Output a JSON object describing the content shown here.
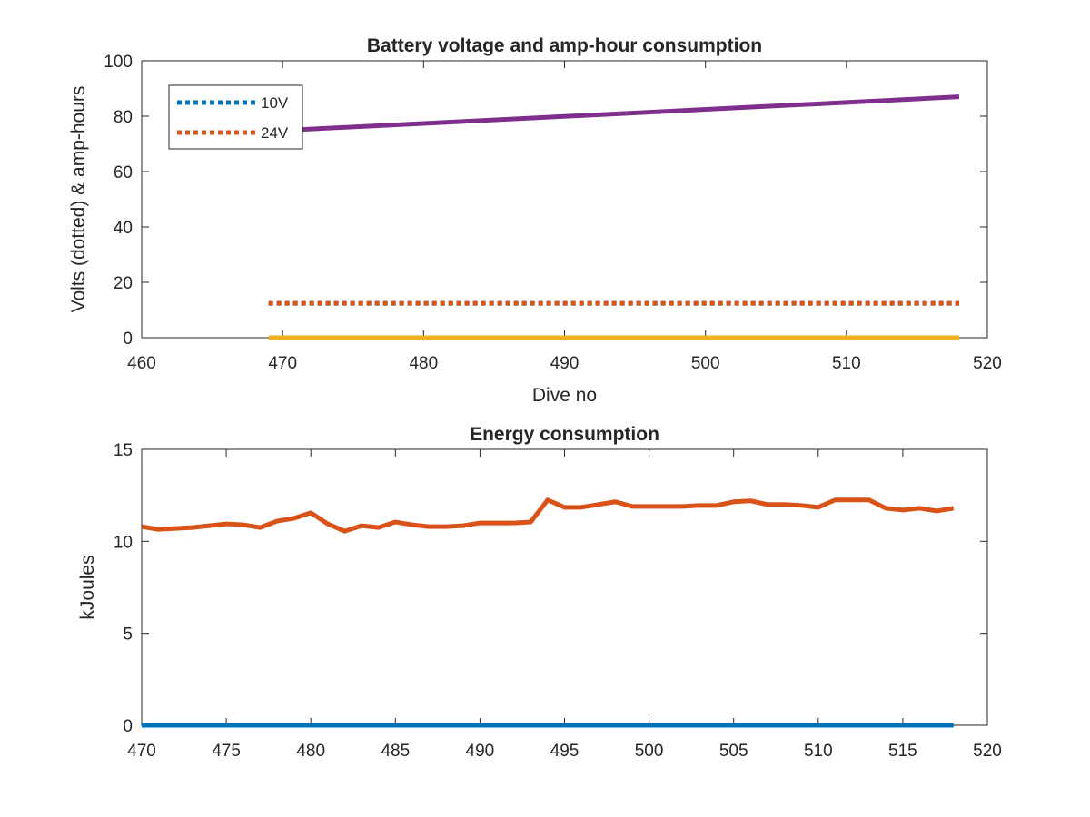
{
  "chart_data": [
    {
      "type": "line",
      "title": "Battery voltage and amp-hour consumption",
      "xlabel": "Dive no",
      "ylabel": "Volts (dotted) & amp-hours",
      "xlim": [
        460,
        520
      ],
      "ylim": [
        0,
        100
      ],
      "xticks": [
        460,
        470,
        480,
        490,
        500,
        510,
        520
      ],
      "yticks": [
        0,
        20,
        40,
        60,
        80,
        100
      ],
      "legend": {
        "position": "top-left",
        "entries": [
          "10V",
          "24V"
        ]
      },
      "series": [
        {
          "name": "10V",
          "color": "#0072BD",
          "style": "dotted",
          "x": [
            469,
            518
          ],
          "y": [
            12.4,
            12.4
          ]
        },
        {
          "name": "24V",
          "color": "#D95319",
          "style": "dotted",
          "x": [
            469,
            518
          ],
          "y": [
            12.4,
            12.4
          ]
        },
        {
          "color": "#7E2F8E",
          "style": "solid",
          "x": [
            469,
            518
          ],
          "y": [
            74.6,
            87
          ]
        },
        {
          "color": "#EDB120",
          "style": "solid",
          "x": [
            469,
            518
          ],
          "y": [
            0,
            0
          ]
        }
      ]
    },
    {
      "type": "line",
      "title": "Energy consumption",
      "xlabel": "",
      "ylabel": "kJoules",
      "xlim": [
        470,
        520
      ],
      "ylim": [
        0,
        15
      ],
      "xticks": [
        470,
        475,
        480,
        485,
        490,
        495,
        500,
        505,
        510,
        515,
        520
      ],
      "yticks": [
        0,
        5,
        10,
        15
      ],
      "series": [
        {
          "color": "#0072BD",
          "style": "solid",
          "x": [
            470,
            518
          ],
          "y": [
            0,
            0
          ]
        },
        {
          "color": "#D95319",
          "style": "solid",
          "x": [
            470,
            471,
            472,
            473,
            474,
            475,
            476,
            477,
            478,
            479,
            480,
            481,
            482,
            483,
            484,
            485,
            486,
            487,
            488,
            489,
            490,
            491,
            492,
            493,
            494,
            495,
            496,
            497,
            498,
            499,
            500,
            501,
            502,
            503,
            504,
            505,
            506,
            507,
            508,
            509,
            510,
            511,
            512,
            513,
            514,
            515,
            516,
            517,
            518
          ],
          "y": [
            10.8,
            10.65,
            10.7,
            10.75,
            10.85,
            10.95,
            10.9,
            10.75,
            11.1,
            11.25,
            11.55,
            10.95,
            10.55,
            10.85,
            10.75,
            11.05,
            10.9,
            10.8,
            10.8,
            10.85,
            11.0,
            11.0,
            11.0,
            11.05,
            12.25,
            11.85,
            11.85,
            12.0,
            12.15,
            11.9,
            11.9,
            11.9,
            11.9,
            11.95,
            11.95,
            12.15,
            12.2,
            12.0,
            12.0,
            11.95,
            11.85,
            12.25,
            12.25,
            12.25,
            11.8,
            11.7,
            11.8,
            11.65,
            11.8
          ]
        }
      ]
    }
  ]
}
